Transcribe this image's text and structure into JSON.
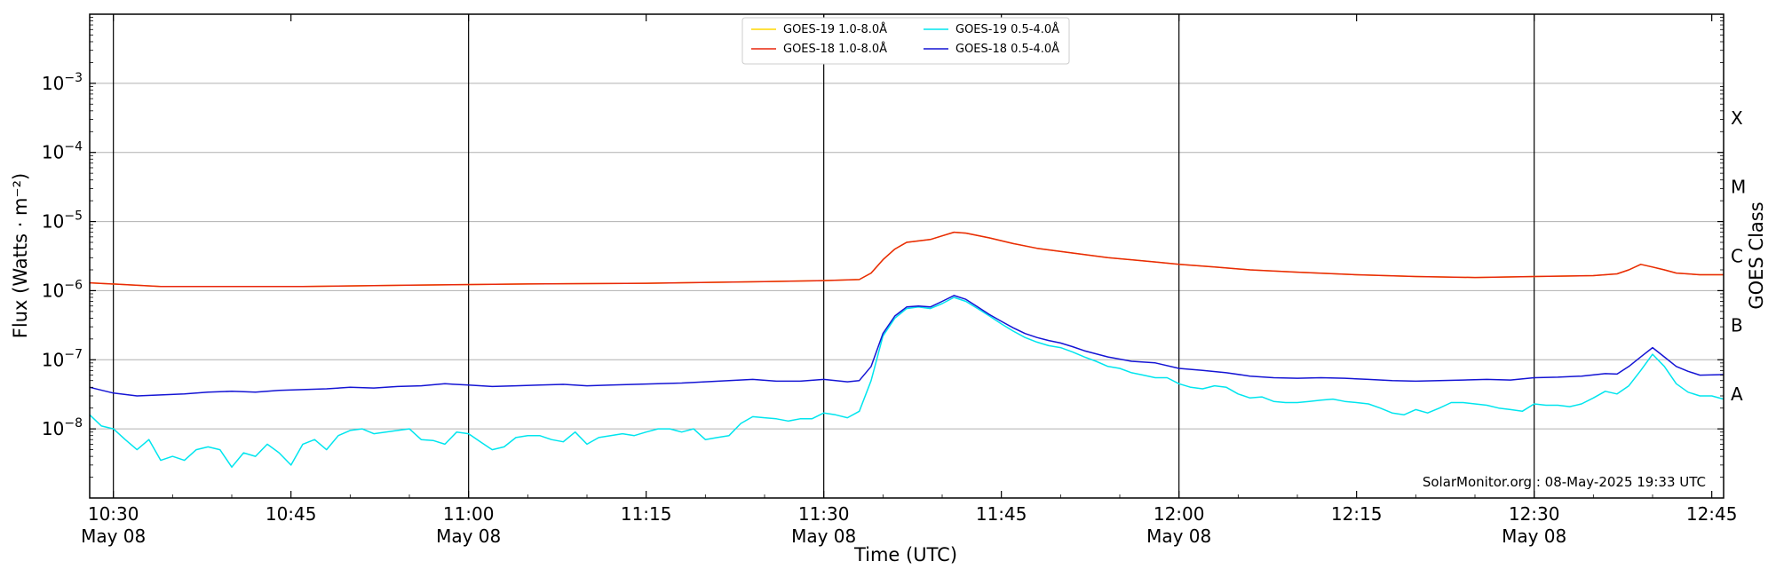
{
  "chart_data": {
    "type": "line",
    "ylabel": "Flux (Watts · m⁻²)",
    "ylabel_right": "GOES Class",
    "xlabel": "Time (UTC)",
    "y_scale": "log",
    "ylim": [
      1e-09,
      0.01
    ],
    "y_ticks": [
      {
        "value": 1e-08,
        "label_base": "10",
        "label_exp": "−8"
      },
      {
        "value": 1e-07,
        "label_base": "10",
        "label_exp": "−7"
      },
      {
        "value": 1e-06,
        "label_base": "10",
        "label_exp": "−6"
      },
      {
        "value": 1e-05,
        "label_base": "10",
        "label_exp": "−5"
      },
      {
        "value": 0.0001,
        "label_base": "10",
        "label_exp": "−4"
      },
      {
        "value": 0.001,
        "label_base": "10",
        "label_exp": "−3"
      }
    ],
    "goes_classes": [
      {
        "label": "A",
        "value": 1e-08
      },
      {
        "label": "B",
        "value": 1e-07
      },
      {
        "label": "C",
        "value": 1e-06
      },
      {
        "label": "M",
        "value": 1e-05
      },
      {
        "label": "X",
        "value": 0.0001
      }
    ],
    "xlim": [
      "10:28",
      "12:46"
    ],
    "x_ticks": [
      {
        "time": "10:30",
        "label": "10:30",
        "sublabel": "May 08"
      },
      {
        "time": "10:45",
        "label": "10:45",
        "sublabel": ""
      },
      {
        "time": "11:00",
        "label": "11:00",
        "sublabel": "May 08"
      },
      {
        "time": "11:15",
        "label": "11:15",
        "sublabel": ""
      },
      {
        "time": "11:30",
        "label": "11:30",
        "sublabel": "May 08"
      },
      {
        "time": "11:45",
        "label": "11:45",
        "sublabel": ""
      },
      {
        "time": "12:00",
        "label": "12:00",
        "sublabel": "May 08"
      },
      {
        "time": "12:15",
        "label": "12:15",
        "sublabel": ""
      },
      {
        "time": "12:30",
        "label": "12:30",
        "sublabel": "May 08"
      },
      {
        "time": "12:45",
        "label": "12:45",
        "sublabel": ""
      }
    ],
    "vertical_lines": [
      "10:30",
      "11:00",
      "11:30",
      "12:00",
      "12:30"
    ],
    "grid": "horizontal",
    "legend_position": "top-center",
    "credit": "SolarMonitor.org : 08-May-2025 19:33 UTC",
    "series": [
      {
        "name": "GOES-19 1.0-8.0Å",
        "color": "#FFD700",
        "times": [
          "10:28",
          "10:34",
          "10:46",
          "10:55",
          "11:05",
          "11:15",
          "11:25",
          "11:30",
          "11:33",
          "11:34",
          "11:35",
          "11:36",
          "11:37",
          "11:39",
          "11:40",
          "11:41",
          "11:42",
          "11:44",
          "11:46",
          "11:48",
          "11:50",
          "11:54",
          "11:58",
          "12:00",
          "12:03",
          "12:06",
          "12:10",
          "12:15",
          "12:20",
          "12:25",
          "12:30",
          "12:35",
          "12:37",
          "12:38",
          "12:39",
          "12:40",
          "12:41",
          "12:42",
          "12:44",
          "12:46"
        ],
        "values": [
          1.3e-06,
          1.15e-06,
          1.15e-06,
          1.2e-06,
          1.25e-06,
          1.28e-06,
          1.35e-06,
          1.4e-06,
          1.45e-06,
          1.8e-06,
          2.8e-06,
          4e-06,
          5e-06,
          5.5e-06,
          6.2e-06,
          7e-06,
          6.8e-06,
          5.8e-06,
          4.8e-06,
          4.1e-06,
          3.7e-06,
          3e-06,
          2.6e-06,
          2.4e-06,
          2.2e-06,
          2e-06,
          1.85e-06,
          1.7e-06,
          1.6e-06,
          1.55e-06,
          1.6e-06,
          1.65e-06,
          1.75e-06,
          2e-06,
          2.4e-06,
          2.2e-06,
          2e-06,
          1.8e-06,
          1.7e-06,
          1.7e-06
        ]
      },
      {
        "name": "GOES-18 1.0-8.0Å",
        "color": "#E8270D",
        "times": [
          "10:28",
          "10:34",
          "10:46",
          "10:55",
          "11:05",
          "11:15",
          "11:25",
          "11:30",
          "11:33",
          "11:34",
          "11:35",
          "11:36",
          "11:37",
          "11:39",
          "11:40",
          "11:41",
          "11:42",
          "11:44",
          "11:46",
          "11:48",
          "11:50",
          "11:54",
          "11:58",
          "12:00",
          "12:03",
          "12:06",
          "12:10",
          "12:15",
          "12:20",
          "12:25",
          "12:30",
          "12:35",
          "12:37",
          "12:38",
          "12:39",
          "12:40",
          "12:41",
          "12:42",
          "12:44",
          "12:46"
        ],
        "values": [
          1.3e-06,
          1.15e-06,
          1.15e-06,
          1.2e-06,
          1.25e-06,
          1.28e-06,
          1.35e-06,
          1.4e-06,
          1.45e-06,
          1.8e-06,
          2.8e-06,
          4e-06,
          5e-06,
          5.5e-06,
          6.2e-06,
          7e-06,
          6.8e-06,
          5.8e-06,
          4.8e-06,
          4.1e-06,
          3.7e-06,
          3e-06,
          2.6e-06,
          2.4e-06,
          2.2e-06,
          2e-06,
          1.85e-06,
          1.7e-06,
          1.6e-06,
          1.55e-06,
          1.6e-06,
          1.65e-06,
          1.75e-06,
          2e-06,
          2.4e-06,
          2.2e-06,
          2e-06,
          1.8e-06,
          1.7e-06,
          1.7e-06
        ]
      },
      {
        "name": "GOES-19 0.5-4.0Å",
        "color": "#00E5EE",
        "times": [
          "10:28",
          "10:29",
          "10:30",
          "10:31",
          "10:32",
          "10:33",
          "10:34",
          "10:35",
          "10:36",
          "10:37",
          "10:38",
          "10:39",
          "10:40",
          "10:41",
          "10:42",
          "10:43",
          "10:44",
          "10:45",
          "10:46",
          "10:47",
          "10:48",
          "10:49",
          "10:50",
          "10:51",
          "10:52",
          "10:53",
          "10:54",
          "10:55",
          "10:56",
          "10:57",
          "10:58",
          "10:59",
          "11:00",
          "11:01",
          "11:02",
          "11:03",
          "11:04",
          "11:05",
          "11:06",
          "11:07",
          "11:08",
          "11:09",
          "11:10",
          "11:11",
          "11:12",
          "11:13",
          "11:14",
          "11:15",
          "11:16",
          "11:17",
          "11:18",
          "11:19",
          "11:20",
          "11:21",
          "11:22",
          "11:23",
          "11:24",
          "11:25",
          "11:26",
          "11:27",
          "11:28",
          "11:29",
          "11:30",
          "11:31",
          "11:32",
          "11:33",
          "11:34",
          "11:35",
          "11:36",
          "11:37",
          "11:38",
          "11:39",
          "11:40",
          "11:41",
          "11:42",
          "11:43",
          "11:44",
          "11:45",
          "11:46",
          "11:47",
          "11:48",
          "11:49",
          "11:50",
          "11:51",
          "11:52",
          "11:53",
          "11:54",
          "11:55",
          "11:56",
          "11:57",
          "11:58",
          "11:59",
          "12:00",
          "12:01",
          "12:02",
          "12:03",
          "12:04",
          "12:05",
          "12:06",
          "12:07",
          "12:08",
          "12:09",
          "12:10",
          "12:11",
          "12:12",
          "12:13",
          "12:14",
          "12:15",
          "12:16",
          "12:17",
          "12:18",
          "12:19",
          "12:20",
          "12:21",
          "12:22",
          "12:23",
          "12:24",
          "12:25",
          "12:26",
          "12:27",
          "12:28",
          "12:29",
          "12:30",
          "12:31",
          "12:32",
          "12:33",
          "12:34",
          "12:35",
          "12:36",
          "12:37",
          "12:38",
          "12:39",
          "12:40",
          "12:41",
          "12:42",
          "12:43",
          "12:44",
          "12:45",
          "12:46"
        ],
        "values": [
          1.6e-08,
          1.1e-08,
          1e-08,
          7e-09,
          5e-09,
          7e-09,
          3.5e-09,
          4e-09,
          3.5e-09,
          5e-09,
          5.5e-09,
          5e-09,
          2.8e-09,
          4.5e-09,
          4e-09,
          6e-09,
          4.5e-09,
          3e-09,
          6e-09,
          7e-09,
          5e-09,
          8e-09,
          9.5e-09,
          1e-08,
          8.5e-09,
          9e-09,
          9.5e-09,
          1e-08,
          7e-09,
          6.8e-09,
          6e-09,
          9e-09,
          8.5e-09,
          6.5e-09,
          5e-09,
          5.5e-09,
          7.5e-09,
          8e-09,
          8e-09,
          7e-09,
          6.5e-09,
          9e-09,
          6e-09,
          7.5e-09,
          8e-09,
          8.5e-09,
          8e-09,
          9e-09,
          1e-08,
          1e-08,
          9e-09,
          1e-08,
          7e-09,
          7.5e-09,
          8e-09,
          1.2e-08,
          1.5e-08,
          1.45e-08,
          1.4e-08,
          1.3e-08,
          1.4e-08,
          1.4e-08,
          1.7e-08,
          1.6e-08,
          1.45e-08,
          1.8e-08,
          5e-08,
          2.2e-07,
          4e-07,
          5.5e-07,
          5.8e-07,
          5.5e-07,
          6.5e-07,
          8e-07,
          7e-07,
          5.5e-07,
          4.3e-07,
          3.3e-07,
          2.6e-07,
          2.1e-07,
          1.8e-07,
          1.6e-07,
          1.5e-07,
          1.3e-07,
          1.1e-07,
          9.5e-08,
          8e-08,
          7.5e-08,
          6.5e-08,
          6e-08,
          5.5e-08,
          5.5e-08,
          4.5e-08,
          4e-08,
          3.8e-08,
          4.2e-08,
          4e-08,
          3.2e-08,
          2.8e-08,
          2.9e-08,
          2.5e-08,
          2.4e-08,
          2.4e-08,
          2.5e-08,
          2.6e-08,
          2.7e-08,
          2.5e-08,
          2.4e-08,
          2.3e-08,
          2e-08,
          1.7e-08,
          1.6e-08,
          1.9e-08,
          1.7e-08,
          2e-08,
          2.4e-08,
          2.4e-08,
          2.3e-08,
          2.2e-08,
          2e-08,
          1.9e-08,
          1.8e-08,
          2.3e-08,
          2.2e-08,
          2.2e-08,
          2.1e-08,
          2.3e-08,
          2.8e-08,
          3.5e-08,
          3.2e-08,
          4.2e-08,
          7e-08,
          1.2e-07,
          8e-08,
          4.5e-08,
          3.4e-08,
          3e-08,
          3e-08,
          2.7e-08
        ]
      },
      {
        "name": "GOES-18 0.5-4.0Å",
        "color": "#1414D4",
        "times": [
          "10:28",
          "10:30",
          "10:32",
          "10:34",
          "10:36",
          "10:38",
          "10:40",
          "10:42",
          "10:44",
          "10:46",
          "10:48",
          "10:50",
          "10:52",
          "10:54",
          "10:56",
          "10:58",
          "11:00",
          "11:02",
          "11:04",
          "11:06",
          "11:08",
          "11:10",
          "11:12",
          "11:14",
          "11:16",
          "11:18",
          "11:20",
          "11:22",
          "11:24",
          "11:26",
          "11:28",
          "11:30",
          "11:32",
          "11:33",
          "11:34",
          "11:35",
          "11:36",
          "11:37",
          "11:38",
          "11:39",
          "11:40",
          "11:41",
          "11:42",
          "11:43",
          "11:44",
          "11:45",
          "11:46",
          "11:47",
          "11:48",
          "11:49",
          "11:50",
          "11:51",
          "11:52",
          "11:54",
          "11:56",
          "11:58",
          "12:00",
          "12:02",
          "12:04",
          "12:06",
          "12:08",
          "12:10",
          "12:12",
          "12:14",
          "12:16",
          "12:18",
          "12:20",
          "12:22",
          "12:24",
          "12:26",
          "12:28",
          "12:30",
          "12:32",
          "12:34",
          "12:36",
          "12:37",
          "12:38",
          "12:39",
          "12:40",
          "12:41",
          "12:42",
          "12:43",
          "12:44",
          "12:46"
        ],
        "values": [
          4e-08,
          3.3e-08,
          3e-08,
          3.1e-08,
          3.2e-08,
          3.4e-08,
          3.5e-08,
          3.4e-08,
          3.6e-08,
          3.7e-08,
          3.8e-08,
          4e-08,
          3.9e-08,
          4.1e-08,
          4.2e-08,
          4.5e-08,
          4.3e-08,
          4.1e-08,
          4.2e-08,
          4.3e-08,
          4.4e-08,
          4.2e-08,
          4.3e-08,
          4.4e-08,
          4.5e-08,
          4.6e-08,
          4.8e-08,
          5e-08,
          5.2e-08,
          4.9e-08,
          4.9e-08,
          5.2e-08,
          4.8e-08,
          5e-08,
          8e-08,
          2.4e-07,
          4.3e-07,
          5.8e-07,
          6e-07,
          5.8e-07,
          7e-07,
          8.5e-07,
          7.5e-07,
          5.8e-07,
          4.5e-07,
          3.6e-07,
          2.9e-07,
          2.4e-07,
          2.1e-07,
          1.9e-07,
          1.75e-07,
          1.55e-07,
          1.35e-07,
          1.1e-07,
          9.5e-08,
          9e-08,
          7.5e-08,
          7e-08,
          6.5e-08,
          5.8e-08,
          5.5e-08,
          5.4e-08,
          5.5e-08,
          5.4e-08,
          5.2e-08,
          5e-08,
          4.9e-08,
          5e-08,
          5.1e-08,
          5.2e-08,
          5.1e-08,
          5.5e-08,
          5.6e-08,
          5.8e-08,
          6.3e-08,
          6.2e-08,
          8e-08,
          1.1e-07,
          1.5e-07,
          1.1e-07,
          8e-08,
          6.8e-08,
          6e-08,
          6.1e-08
        ]
      }
    ]
  }
}
